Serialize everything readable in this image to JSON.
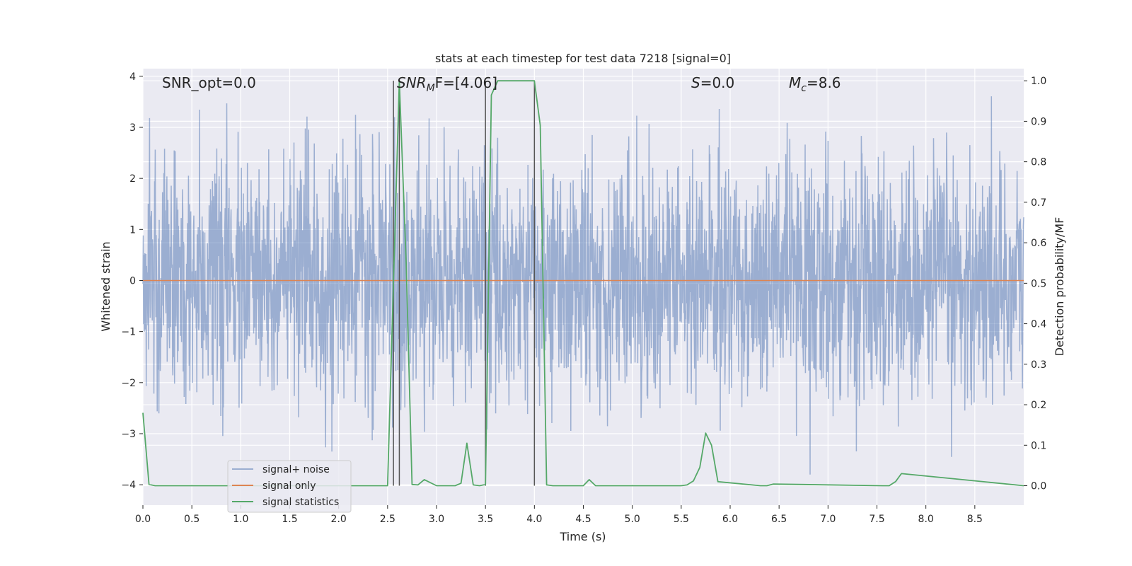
{
  "chart_data": {
    "type": "line",
    "title": "stats at each timestep for test data 7218 [signal=0]",
    "xlabel": "Time (s)",
    "ylabel_left": "Whitened strain",
    "ylabel_right": "Detection probability/MF",
    "xlim": [
      0.0,
      9.0
    ],
    "ylim_left": [
      -4.4,
      4.15
    ],
    "ylim_right": [
      -0.048,
      1.03
    ],
    "x_ticks": [
      "0.0",
      "0.5",
      "1.0",
      "1.5",
      "2.0",
      "2.5",
      "3.0",
      "3.5",
      "4.0",
      "4.5",
      "5.0",
      "5.5",
      "6.0",
      "6.5",
      "7.0",
      "7.5",
      "8.0",
      "8.5"
    ],
    "y_ticks_left": [
      "4",
      "3",
      "2",
      "1",
      "0",
      "−1",
      "−2",
      "−3",
      "−4"
    ],
    "y_ticks_right": [
      "1.0",
      "0.9",
      "0.8",
      "0.7",
      "0.6",
      "0.5",
      "0.4",
      "0.3",
      "0.2",
      "0.1",
      "0.0"
    ],
    "grid": true,
    "legend_position": "lower-left",
    "annotations": {
      "snr_opt": "SNR_opt=0.0",
      "snr_mf_main": "SNR",
      "snr_mf_sub": "M",
      "snr_mf_rest": "F=[4.06]",
      "s_main": "S",
      "s_rest": "=0.0",
      "mc_main": "M",
      "mc_sub": "c",
      "mc_rest": "=8.6"
    },
    "vertical_markers_x": [
      2.56,
      2.62,
      3.5,
      4.0
    ],
    "series": [
      {
        "name": "signal+ noise",
        "color": "#4c72b0",
        "opacity": 0.5,
        "axis": "left",
        "sample_interval": 0.0034,
        "amplitude_std": 1.15,
        "max_abs": 3.8
      },
      {
        "name": "signal only",
        "color": "#dd8452",
        "axis": "left",
        "x": [
          0.0,
          9.0
        ],
        "y": [
          0.0,
          0.0
        ]
      },
      {
        "name": "signal statistics",
        "color": "#55a868",
        "axis": "right",
        "x": [
          0.0,
          0.062,
          0.125,
          0.188,
          2.5,
          2.56,
          2.62,
          2.69,
          2.75,
          2.81,
          2.875,
          3.0,
          3.19,
          3.25,
          3.31,
          3.375,
          3.44,
          3.5,
          3.56,
          3.625,
          3.69,
          3.75,
          3.81,
          3.875,
          3.94,
          4.0,
          4.06,
          4.125,
          4.19,
          4.5,
          4.56,
          4.625,
          5.25,
          5.5,
          5.56,
          5.625,
          5.69,
          5.75,
          5.81,
          5.875,
          6.31,
          6.375,
          6.44,
          7.56,
          7.625,
          7.69,
          7.75,
          9.0
        ],
        "y": [
          0.18,
          0.003,
          0.0,
          0.0,
          0.0,
          0.5,
          1.0,
          0.55,
          0.003,
          0.002,
          0.015,
          0.0,
          0.0,
          0.006,
          0.105,
          0.002,
          0.0,
          0.003,
          0.965,
          1.0,
          1.0,
          1.0,
          1.0,
          1.0,
          1.0,
          1.0,
          0.89,
          0.002,
          0.0,
          0.0,
          0.015,
          0.0,
          0.0,
          0.0,
          0.002,
          0.012,
          0.045,
          0.13,
          0.1,
          0.01,
          0.0,
          0.0,
          0.004,
          0.0,
          0.0,
          0.01,
          0.03,
          0.0
        ]
      }
    ]
  }
}
